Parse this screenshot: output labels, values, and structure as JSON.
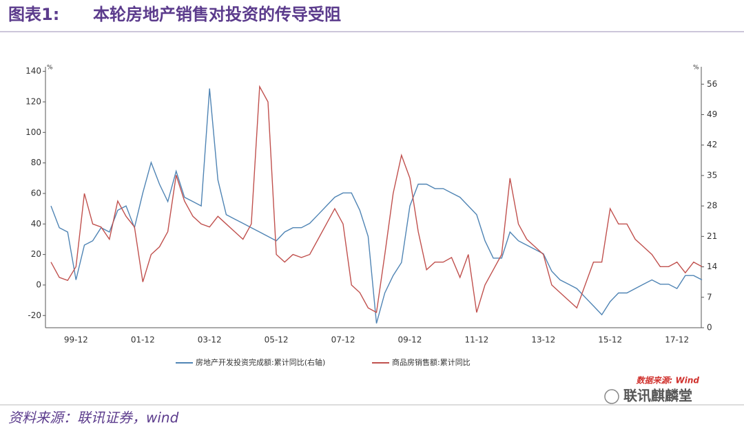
{
  "header": {
    "label": "图表1:",
    "title": "本轮房地产销售对投资的传导受阻"
  },
  "chart_data": {
    "type": "line",
    "y_unit": "%",
    "y2_unit": "%",
    "categories": [
      null,
      null,
      null,
      "99-12",
      null,
      null,
      null,
      null,
      null,
      null,
      null,
      "01-12",
      null,
      null,
      null,
      null,
      null,
      null,
      null,
      "03-12",
      null,
      null,
      null,
      null,
      null,
      null,
      null,
      "05-12",
      null,
      null,
      null,
      null,
      null,
      null,
      null,
      "07-12",
      null,
      null,
      null,
      null,
      null,
      null,
      null,
      "09-12",
      null,
      null,
      null,
      null,
      null,
      null,
      null,
      "11-12",
      null,
      null,
      null,
      null,
      null,
      null,
      null,
      "13-12",
      null,
      null,
      null,
      null,
      null,
      null,
      null,
      "15-12",
      null,
      null,
      null,
      null,
      null,
      null,
      null,
      "17-12",
      null,
      null,
      null
    ],
    "series": [
      {
        "name": "房地产开发投资完成额:累计同比(右轴)",
        "color": "#4f84b4",
        "axis": "y2",
        "values": [
          28,
          23,
          22,
          11,
          19,
          20,
          23,
          22,
          27,
          28,
          23,
          31,
          38,
          33,
          29,
          36,
          30,
          29,
          28,
          55,
          34,
          26,
          25,
          24,
          23,
          22,
          21,
          20,
          22,
          23,
          23,
          24,
          26,
          28,
          30,
          31,
          31,
          27,
          21,
          1,
          8,
          12,
          15,
          28,
          33,
          33,
          32,
          32,
          31,
          30,
          28,
          26,
          20,
          16,
          16,
          22,
          20,
          19,
          18,
          17,
          13,
          11,
          10,
          9,
          7,
          5,
          3,
          6,
          8,
          8,
          9,
          10,
          11,
          10,
          10,
          9,
          12,
          12,
          11
        ]
      },
      {
        "name": "商品房销售额:累计同比",
        "color": "#c0504d",
        "values": [
          15,
          5,
          3,
          12,
          60,
          40,
          38,
          30,
          55,
          45,
          38,
          2,
          20,
          25,
          35,
          72,
          55,
          45,
          40,
          38,
          45,
          40,
          35,
          30,
          40,
          130,
          120,
          20,
          15,
          20,
          18,
          20,
          30,
          40,
          50,
          40,
          0,
          -5,
          -15,
          -18,
          20,
          60,
          85,
          70,
          35,
          10,
          15,
          15,
          18,
          5,
          20,
          -18,
          0,
          10,
          20,
          70,
          40,
          30,
          25,
          20,
          0,
          -5,
          -10,
          -15,
          0,
          15,
          15,
          50,
          40,
          40,
          30,
          25,
          20,
          12,
          12,
          15,
          8,
          15,
          12
        ]
      }
    ],
    "ylim": [
      -28,
      143
    ],
    "yticks": [
      -20,
      0,
      20,
      40,
      60,
      80,
      100,
      120,
      140
    ],
    "y2lim": [
      0,
      60
    ],
    "y2ticks": [
      0,
      7,
      14,
      21,
      28,
      35,
      42,
      49,
      56
    ],
    "watermark": "数据来源: Wind"
  },
  "footer": {
    "source": "资料来源：联讯证券，wind",
    "logo": "联讯麒麟堂"
  }
}
